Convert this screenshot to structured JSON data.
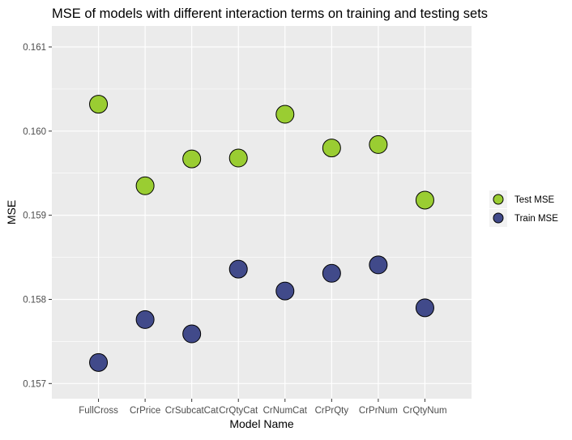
{
  "chart_data": {
    "type": "scatter",
    "title": "MSE of models with different interaction terms on training and testing sets",
    "xlabel": "Model Name",
    "ylabel": "MSE",
    "categories": [
      "FullCross",
      "CrPrice",
      "CrSubcatCat",
      "CrQtyCat",
      "CrNumCat",
      "CrPrQty",
      "CrPrNum",
      "CrQtyNum"
    ],
    "ylim": [
      0.15682,
      0.16125
    ],
    "yticks": [
      0.157,
      0.158,
      0.159,
      0.16,
      0.161
    ],
    "ytick_labels": [
      "0.157",
      "0.158",
      "0.159",
      "0.160",
      "0.161"
    ],
    "grid": true,
    "legend_position": "right",
    "series": [
      {
        "name": "Test MSE",
        "color": "#9ACD32",
        "values": [
          0.16032,
          0.15935,
          0.15967,
          0.15968,
          0.1602,
          0.1598,
          0.15984,
          0.15918
        ]
      },
      {
        "name": "Train MSE",
        "color": "#414A8A",
        "values": [
          0.15725,
          0.15776,
          0.15759,
          0.15836,
          0.1581,
          0.15831,
          0.15841,
          0.1579
        ]
      }
    ]
  },
  "colors": {
    "panel_background": "#EBEBEB",
    "grid_major": "#FFFFFF",
    "marker_outline": "#000000"
  }
}
